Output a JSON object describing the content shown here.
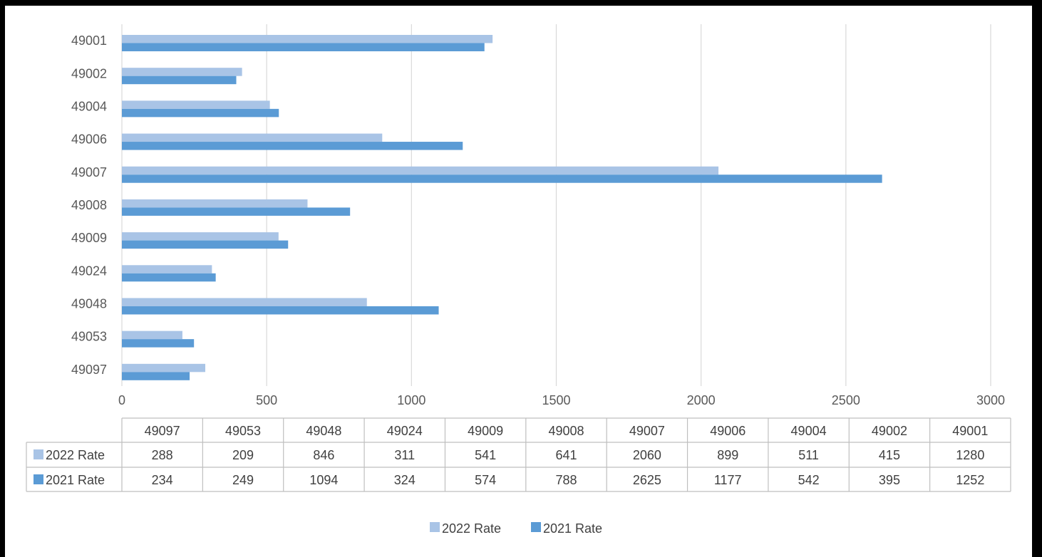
{
  "chart_data": {
    "type": "bar",
    "orientation": "horizontal",
    "categories": [
      "49001",
      "49002",
      "49004",
      "49006",
      "49007",
      "49008",
      "49009",
      "49024",
      "49048",
      "49053",
      "49097"
    ],
    "series": [
      {
        "name": "2022 Rate",
        "color": "#A9C4E6",
        "values": [
          1280,
          415,
          511,
          899,
          2060,
          641,
          541,
          311,
          846,
          209,
          288
        ]
      },
      {
        "name": "2021 Rate",
        "color": "#5B9BD5",
        "values": [
          1252,
          395,
          542,
          1177,
          2625,
          788,
          574,
          324,
          1094,
          249,
          234
        ]
      }
    ],
    "xlim": [
      0,
      3000
    ],
    "x_ticks": [
      "0",
      "500",
      "1000",
      "1500",
      "2000",
      "2500",
      "3000"
    ],
    "grid": "vertical",
    "data_table": {
      "columns": [
        "49097",
        "49053",
        "49048",
        "49024",
        "49009",
        "49008",
        "49007",
        "49006",
        "49004",
        "49002",
        "49001"
      ],
      "rows": [
        {
          "label": "2022 Rate",
          "values": [
            "288",
            "209",
            "846",
            "311",
            "541",
            "641",
            "2060",
            "899",
            "511",
            "415",
            "1280"
          ]
        },
        {
          "label": "2021 Rate",
          "values": [
            "234",
            "249",
            "1094",
            "324",
            "574",
            "788",
            "2625",
            "1177",
            "542",
            "395",
            "1252"
          ]
        }
      ]
    },
    "legend": {
      "position": "bottom",
      "entries": [
        "2022 Rate",
        "2021 Rate"
      ]
    }
  }
}
